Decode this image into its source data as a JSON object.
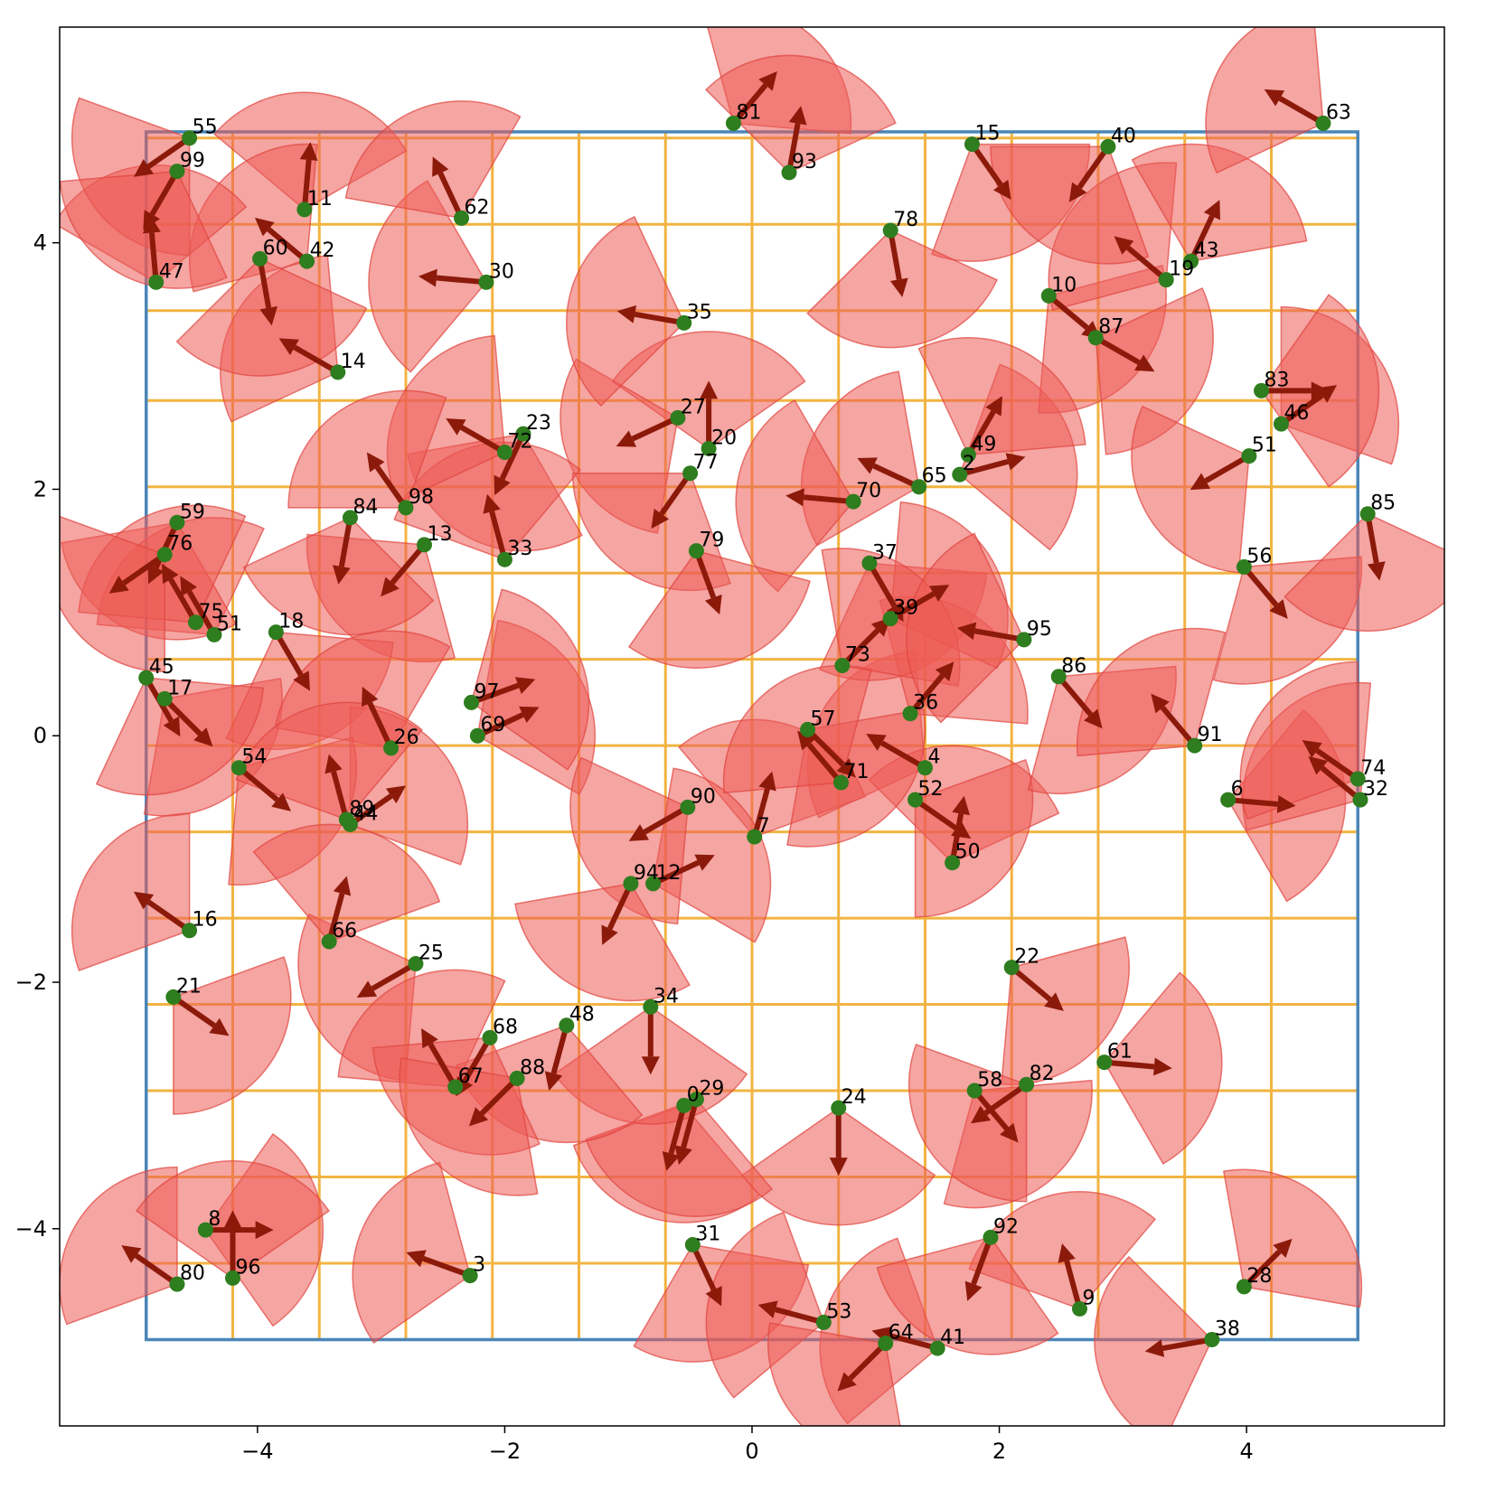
{
  "chart_data": {
    "type": "scatter",
    "title": "",
    "xlabel": "",
    "ylabel": "",
    "xlim": [
      -5.6,
      5.6
    ],
    "ylim": [
      -5.6,
      5.75
    ],
    "xticks": [
      -4,
      -2,
      0,
      2,
      4
    ],
    "yticks": [
      -4,
      -2,
      0,
      2,
      4
    ],
    "xtick_labels": [
      "−4",
      "−2",
      "0",
      "2",
      "4"
    ],
    "ytick_labels": [
      "−4",
      "−2",
      "0",
      "2",
      "4"
    ],
    "boundary": {
      "x": [
        -4.9,
        4.9
      ],
      "y": [
        -4.9,
        4.9
      ],
      "color": "#4a86b8"
    },
    "grid": {
      "color": "#f2b441",
      "x": [
        -4.2,
        -3.5,
        -2.8,
        -2.1,
        -1.4,
        -0.7,
        0.0,
        0.7,
        1.4,
        2.1,
        2.8,
        3.5,
        4.2,
        4.9
      ],
      "y": [
        4.85,
        4.15,
        3.45,
        2.72,
        2.02,
        1.32,
        0.62,
        -0.08,
        -0.78,
        -1.48,
        -2.18,
        -2.88,
        -3.58,
        -4.28
      ]
    },
    "colors": {
      "point": "#2e7d1e",
      "arrow": "#8b1a0a",
      "wedge": "#ec5b55"
    },
    "fov_radius": 0.95,
    "fov_half_angle_deg": 55,
    "arrow_length": 0.55,
    "points": [
      {
        "id": "0",
        "x": -0.55,
        "y": -3.0,
        "heading_deg": -105
      },
      {
        "id": "2",
        "x": 1.68,
        "y": 2.12,
        "heading_deg": 15
      },
      {
        "id": "3",
        "x": -2.28,
        "y": -4.38,
        "heading_deg": 160
      },
      {
        "id": "4",
        "x": 1.4,
        "y": -0.26,
        "heading_deg": 150
      },
      {
        "id": "6",
        "x": 3.85,
        "y": -0.52,
        "heading_deg": -5
      },
      {
        "id": "7",
        "x": 0.02,
        "y": -0.82,
        "heading_deg": 75
      },
      {
        "id": "8",
        "x": -4.42,
        "y": -4.01,
        "heading_deg": 0
      },
      {
        "id": "9",
        "x": 2.65,
        "y": -4.65,
        "heading_deg": 105
      },
      {
        "id": "10",
        "x": 2.4,
        "y": 3.57,
        "heading_deg": -40
      },
      {
        "id": "11",
        "x": -3.62,
        "y": 4.27,
        "heading_deg": 85
      },
      {
        "id": "12",
        "x": -0.8,
        "y": -1.2,
        "heading_deg": 25
      },
      {
        "id": "13",
        "x": -2.65,
        "y": 1.55,
        "heading_deg": -130
      },
      {
        "id": "14",
        "x": -3.35,
        "y": 2.95,
        "heading_deg": 150
      },
      {
        "id": "15",
        "x": 1.78,
        "y": 4.8,
        "heading_deg": -55
      },
      {
        "id": "16",
        "x": -4.55,
        "y": -1.58,
        "heading_deg": 145
      },
      {
        "id": "17",
        "x": -4.75,
        "y": 0.3,
        "heading_deg": -45
      },
      {
        "id": "18",
        "x": -3.85,
        "y": 0.84,
        "heading_deg": -60
      },
      {
        "id": "19",
        "x": 3.35,
        "y": 3.7,
        "heading_deg": 140
      },
      {
        "id": "20",
        "x": -0.35,
        "y": 2.33,
        "heading_deg": 90
      },
      {
        "id": "21",
        "x": -4.68,
        "y": -2.12,
        "heading_deg": -35
      },
      {
        "id": "22",
        "x": 2.1,
        "y": -1.88,
        "heading_deg": -40
      },
      {
        "id": "23",
        "x": -1.85,
        "y": 2.45,
        "heading_deg": -115
      },
      {
        "id": "24",
        "x": 0.7,
        "y": -3.02,
        "heading_deg": -90
      },
      {
        "id": "25",
        "x": -2.72,
        "y": -1.85,
        "heading_deg": -150
      },
      {
        "id": "26",
        "x": -2.92,
        "y": -0.1,
        "heading_deg": 115
      },
      {
        "id": "27",
        "x": -0.6,
        "y": 2.58,
        "heading_deg": -155
      },
      {
        "id": "28",
        "x": 3.98,
        "y": -4.47,
        "heading_deg": 45
      },
      {
        "id": "29",
        "x": -0.45,
        "y": -2.95,
        "heading_deg": -105
      },
      {
        "id": "30",
        "x": -2.15,
        "y": 3.68,
        "heading_deg": 175
      },
      {
        "id": "31",
        "x": -0.48,
        "y": -4.13,
        "heading_deg": -65
      },
      {
        "id": "32",
        "x": 4.92,
        "y": -0.52,
        "heading_deg": 140
      },
      {
        "id": "33",
        "x": -2.0,
        "y": 1.43,
        "heading_deg": 105
      },
      {
        "id": "34",
        "x": -0.82,
        "y": -2.2,
        "heading_deg": -90
      },
      {
        "id": "35",
        "x": -0.55,
        "y": 3.35,
        "heading_deg": 170
      },
      {
        "id": "36",
        "x": 1.28,
        "y": 0.18,
        "heading_deg": 50
      },
      {
        "id": "37",
        "x": 0.95,
        "y": 1.4,
        "heading_deg": -60
      },
      {
        "id": "38",
        "x": 3.72,
        "y": -4.9,
        "heading_deg": -170
      },
      {
        "id": "39",
        "x": 1.12,
        "y": 0.95,
        "heading_deg": 30
      },
      {
        "id": "40",
        "x": 2.88,
        "y": 4.78,
        "heading_deg": -125
      },
      {
        "id": "41",
        "x": 1.5,
        "y": -4.97,
        "heading_deg": 165
      },
      {
        "id": "42",
        "x": -3.6,
        "y": 3.85,
        "heading_deg": 140
      },
      {
        "id": "43",
        "x": 3.55,
        "y": 3.85,
        "heading_deg": 65
      },
      {
        "id": "44",
        "x": -3.25,
        "y": -0.72,
        "heading_deg": 35
      },
      {
        "id": "45",
        "x": -4.9,
        "y": 0.47,
        "heading_deg": -60
      },
      {
        "id": "46",
        "x": 4.28,
        "y": 2.53,
        "heading_deg": 35
      },
      {
        "id": "47",
        "x": -4.82,
        "y": 3.68,
        "heading_deg": 95
      },
      {
        "id": "48",
        "x": -1.5,
        "y": -2.35,
        "heading_deg": -105
      },
      {
        "id": "49",
        "x": 1.75,
        "y": 2.28,
        "heading_deg": 60
      },
      {
        "id": "50",
        "x": 1.62,
        "y": -1.03,
        "heading_deg": 80
      },
      {
        "id": "51",
        "x": -4.35,
        "y": 0.82,
        "heading_deg": 120
      },
      {
        "id": "52",
        "x": 1.32,
        "y": -0.52,
        "heading_deg": -35
      },
      {
        "id": "53",
        "x": 0.58,
        "y": -4.76,
        "heading_deg": 165
      },
      {
        "id": "54",
        "x": -4.15,
        "y": -0.26,
        "heading_deg": -40
      },
      {
        "id": "55",
        "x": -4.55,
        "y": 4.85,
        "heading_deg": -145
      },
      {
        "id": "56",
        "x": 3.98,
        "y": 1.37,
        "heading_deg": -50
      },
      {
        "id": "57",
        "x": 0.45,
        "y": 0.05,
        "heading_deg": -45
      },
      {
        "id": "58",
        "x": 1.8,
        "y": -2.88,
        "heading_deg": -50
      },
      {
        "id": "59",
        "x": -4.65,
        "y": 1.73,
        "heading_deg": -115
      },
      {
        "id": "60",
        "x": -3.98,
        "y": 3.87,
        "heading_deg": -80
      },
      {
        "id": "61",
        "x": 2.85,
        "y": -2.65,
        "heading_deg": -5
      },
      {
        "id": "62",
        "x": -2.35,
        "y": 4.2,
        "heading_deg": 115
      },
      {
        "id": "63",
        "x": 4.62,
        "y": 4.97,
        "heading_deg": 150
      },
      {
        "id": "64",
        "x": 1.08,
        "y": -4.93,
        "heading_deg": -135
      },
      {
        "id": "65",
        "x": 1.35,
        "y": 2.02,
        "heading_deg": 155
      },
      {
        "id": "66",
        "x": -3.42,
        "y": -1.67,
        "heading_deg": 75
      },
      {
        "id": "67",
        "x": -2.4,
        "y": -2.85,
        "heading_deg": 120
      },
      {
        "id": "68",
        "x": -2.12,
        "y": -2.45,
        "heading_deg": -120
      },
      {
        "id": "69",
        "x": -2.22,
        "y": 0.0,
        "heading_deg": 25
      },
      {
        "id": "70",
        "x": 0.82,
        "y": 1.9,
        "heading_deg": 175
      },
      {
        "id": "71",
        "x": 0.72,
        "y": -0.38,
        "heading_deg": 130
      },
      {
        "id": "72",
        "x": -2.0,
        "y": 2.3,
        "heading_deg": 150
      },
      {
        "id": "73",
        "x": 0.73,
        "y": 0.57,
        "heading_deg": 45
      },
      {
        "id": "74",
        "x": 4.9,
        "y": -0.35,
        "heading_deg": 145
      },
      {
        "id": "75",
        "x": -4.5,
        "y": 0.92,
        "heading_deg": 120
      },
      {
        "id": "76",
        "x": -4.75,
        "y": 1.47,
        "heading_deg": -145
      },
      {
        "id": "77",
        "x": -0.5,
        "y": 2.13,
        "heading_deg": -125
      },
      {
        "id": "78",
        "x": 1.12,
        "y": 4.1,
        "heading_deg": -80
      },
      {
        "id": "79",
        "x": -0.45,
        "y": 1.5,
        "heading_deg": -70
      },
      {
        "id": "80",
        "x": -4.65,
        "y": -4.45,
        "heading_deg": 145
      },
      {
        "id": "81",
        "x": -0.15,
        "y": 4.97,
        "heading_deg": 50
      },
      {
        "id": "82",
        "x": 2.22,
        "y": -2.83,
        "heading_deg": -145
      },
      {
        "id": "83",
        "x": 4.12,
        "y": 2.8,
        "heading_deg": 0
      },
      {
        "id": "84",
        "x": -3.25,
        "y": 1.77,
        "heading_deg": -100
      },
      {
        "id": "85",
        "x": 4.98,
        "y": 1.8,
        "heading_deg": -80
      },
      {
        "id": "86",
        "x": 2.48,
        "y": 0.48,
        "heading_deg": -50
      },
      {
        "id": "87",
        "x": 2.78,
        "y": 3.23,
        "heading_deg": -30
      },
      {
        "id": "88",
        "x": -1.9,
        "y": -2.78,
        "heading_deg": -135
      },
      {
        "id": "89",
        "x": -3.28,
        "y": -0.68,
        "heading_deg": 105
      },
      {
        "id": "90",
        "x": -0.52,
        "y": -0.58,
        "heading_deg": -150
      },
      {
        "id": "91",
        "x": 3.58,
        "y": -0.08,
        "heading_deg": 130
      },
      {
        "id": "92",
        "x": 1.93,
        "y": -4.07,
        "heading_deg": -110
      },
      {
        "id": "93",
        "x": 0.3,
        "y": 4.57,
        "heading_deg": 80
      },
      {
        "id": "94",
        "x": -0.98,
        "y": -1.2,
        "heading_deg": -115
      },
      {
        "id": "95",
        "x": 2.2,
        "y": 0.78,
        "heading_deg": 170
      },
      {
        "id": "96",
        "x": -4.2,
        "y": -4.4,
        "heading_deg": 90
      },
      {
        "id": "97",
        "x": -2.27,
        "y": 0.27,
        "heading_deg": 20
      },
      {
        "id": "98",
        "x": -2.8,
        "y": 1.85,
        "heading_deg": 125
      },
      {
        "id": "99",
        "x": -4.65,
        "y": 4.58,
        "heading_deg": -120
      },
      {
        "id": "51",
        "x": 4.02,
        "y": 2.27,
        "heading_deg": -150
      }
    ]
  }
}
